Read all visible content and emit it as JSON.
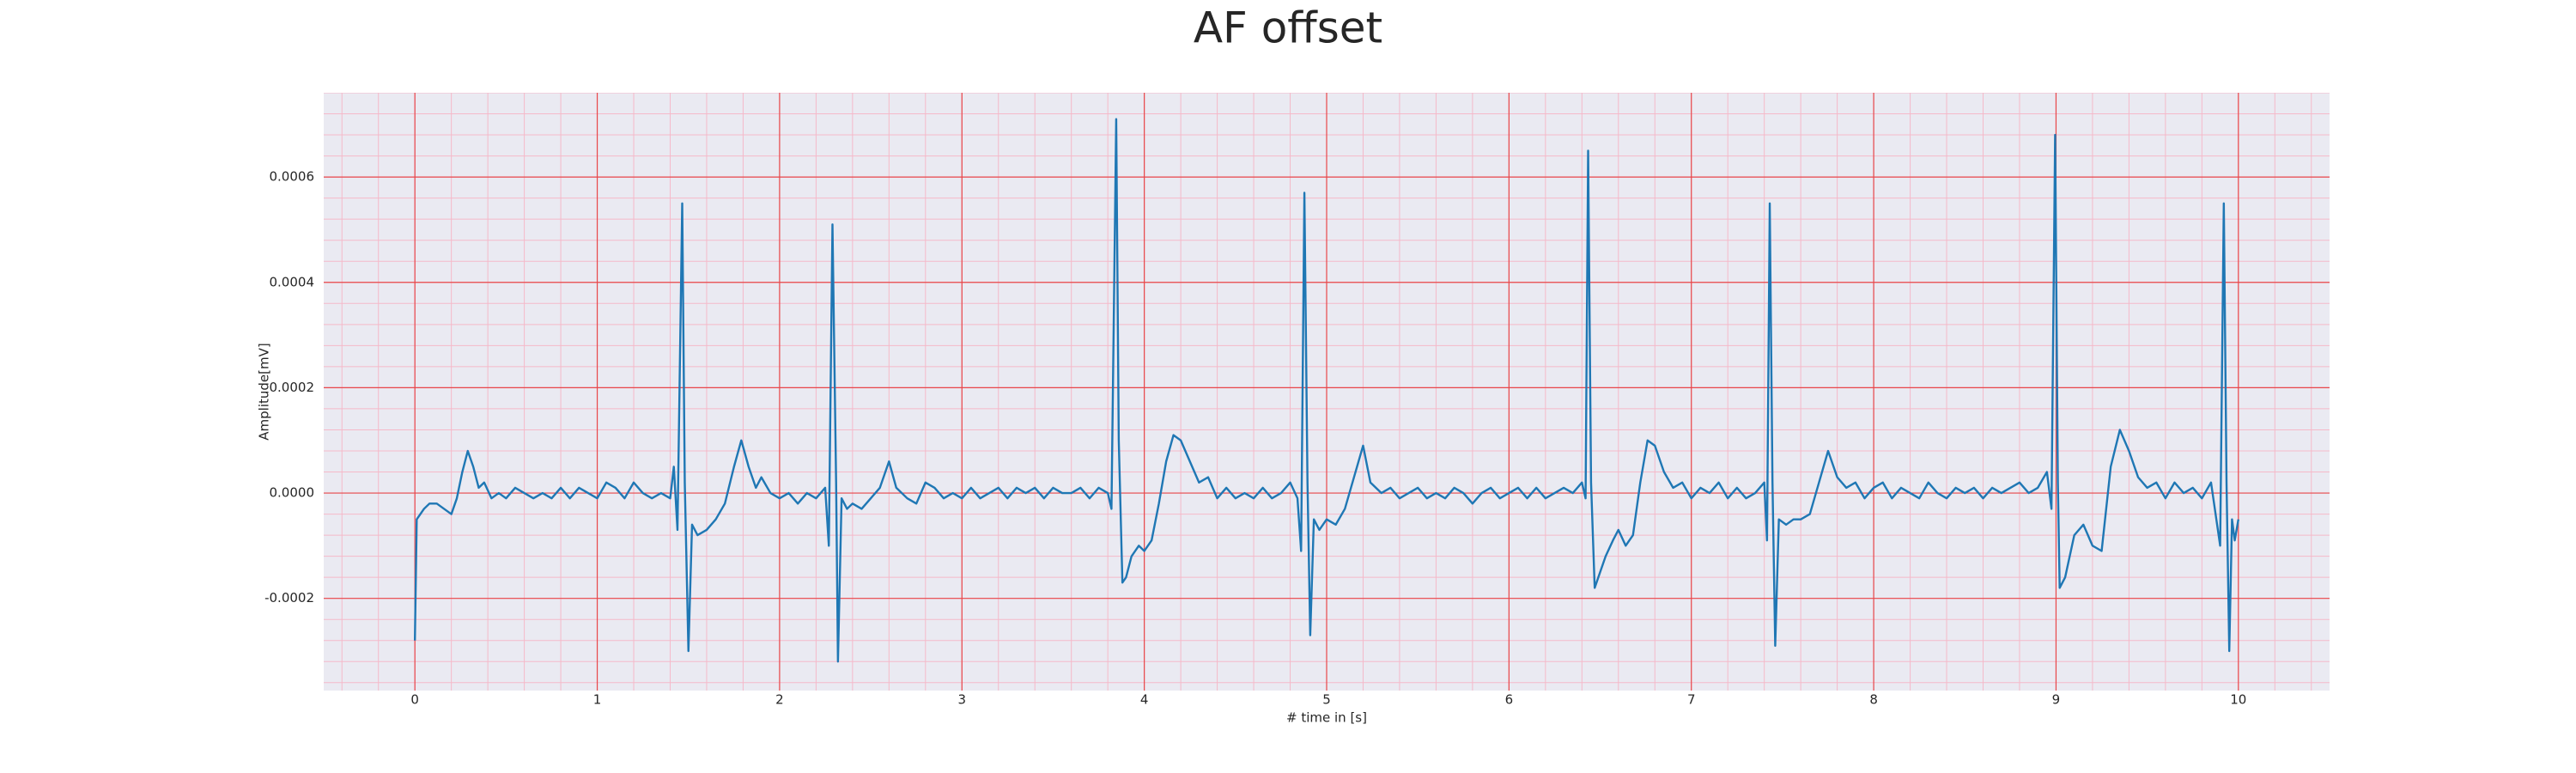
{
  "chart_data": {
    "type": "line",
    "title": "AF offset",
    "xlabel": "# time in [s]",
    "ylabel": "Amplitude[mV]",
    "color": "#1f77b4",
    "background": "#eaeaf2",
    "grid": true,
    "grid_color": "#e8474a",
    "minor_grid": true,
    "minor_grid_color": "#f5b9c9",
    "xlim": [
      -0.5,
      10.5
    ],
    "ylim": [
      -0.000375,
      0.00076
    ],
    "xticks": [
      0,
      1,
      2,
      3,
      4,
      5,
      6,
      7,
      8,
      9,
      10
    ],
    "yticks": [
      {
        "value": -0.0002,
        "label": "-0.0002"
      },
      {
        "value": 0,
        "label": "0.0000"
      },
      {
        "value": 0.0002,
        "label": "0.0002"
      },
      {
        "value": 0.0004,
        "label": "0.0004"
      },
      {
        "value": 0.0006,
        "label": "0.0006"
      }
    ],
    "x": [
      0,
      0.01,
      0.03,
      0.05,
      0.08,
      0.12,
      0.16,
      0.2,
      0.23,
      0.26,
      0.29,
      0.32,
      0.35,
      0.38,
      0.42,
      0.46,
      0.5,
      0.55,
      0.6,
      0.65,
      0.7,
      0.75,
      0.8,
      0.85,
      0.9,
      0.95,
      1.0,
      1.05,
      1.1,
      1.15,
      1.2,
      1.25,
      1.3,
      1.35,
      1.4,
      1.42,
      1.44,
      1.466,
      1.48,
      1.5,
      1.52,
      1.55,
      1.6,
      1.65,
      1.7,
      1.75,
      1.79,
      1.83,
      1.87,
      1.9,
      1.95,
      2.0,
      2.05,
      2.1,
      2.15,
      2.2,
      2.25,
      2.27,
      2.29,
      2.31,
      2.32,
      2.34,
      2.37,
      2.4,
      2.45,
      2.5,
      2.55,
      2.6,
      2.64,
      2.7,
      2.75,
      2.8,
      2.85,
      2.9,
      2.95,
      3.0,
      3.05,
      3.1,
      3.15,
      3.2,
      3.25,
      3.3,
      3.35,
      3.4,
      3.45,
      3.5,
      3.55,
      3.6,
      3.65,
      3.7,
      3.75,
      3.8,
      3.82,
      3.846,
      3.86,
      3.88,
      3.9,
      3.93,
      3.97,
      4.0,
      4.04,
      4.08,
      4.12,
      4.16,
      4.2,
      4.25,
      4.3,
      4.35,
      4.4,
      4.45,
      4.5,
      4.55,
      4.6,
      4.65,
      4.7,
      4.75,
      4.8,
      4.84,
      4.86,
      4.878,
      4.895,
      4.91,
      4.93,
      4.96,
      5.0,
      5.05,
      5.1,
      5.15,
      5.2,
      5.24,
      5.3,
      5.35,
      5.4,
      5.45,
      5.5,
      5.55,
      5.6,
      5.65,
      5.7,
      5.75,
      5.8,
      5.85,
      5.9,
      5.95,
      6.0,
      6.05,
      6.1,
      6.15,
      6.2,
      6.25,
      6.3,
      6.35,
      6.4,
      6.42,
      6.434,
      6.45,
      6.47,
      6.5,
      6.53,
      6.57,
      6.6,
      6.64,
      6.68,
      6.72,
      6.76,
      6.8,
      6.85,
      6.9,
      6.95,
      7.0,
      7.05,
      7.1,
      7.15,
      7.2,
      7.25,
      7.3,
      7.35,
      7.4,
      7.415,
      7.43,
      7.445,
      7.46,
      7.48,
      7.52,
      7.56,
      7.6,
      7.65,
      7.7,
      7.75,
      7.8,
      7.85,
      7.9,
      7.95,
      8.0,
      8.05,
      8.1,
      8.15,
      8.2,
      8.25,
      8.3,
      8.35,
      8.4,
      8.45,
      8.5,
      8.55,
      8.6,
      8.65,
      8.7,
      8.75,
      8.8,
      8.85,
      8.9,
      8.95,
      8.975,
      8.995,
      9.01,
      9.02,
      9.05,
      9.1,
      9.15,
      9.2,
      9.25,
      9.3,
      9.35,
      9.4,
      9.45,
      9.5,
      9.55,
      9.6,
      9.65,
      9.7,
      9.75,
      9.8,
      9.85,
      9.9,
      9.92,
      9.935,
      9.95,
      9.965,
      9.98,
      10.0
    ],
    "values": [
      -0.00028,
      -5e-05,
      -4e-05,
      -3e-05,
      -2e-05,
      -2e-05,
      -3e-05,
      -4e-05,
      -1e-05,
      4e-05,
      8e-05,
      5e-05,
      1e-05,
      2e-05,
      -1e-05,
      0,
      -1e-05,
      1e-05,
      0,
      -1e-05,
      0,
      -1e-05,
      1e-05,
      -1e-05,
      1e-05,
      0,
      -1e-05,
      2e-05,
      1e-05,
      -1e-05,
      2e-05,
      0,
      -1e-05,
      0,
      -1e-05,
      5e-05,
      -7e-05,
      0.00055,
      2e-05,
      -0.0003,
      -6e-05,
      -8e-05,
      -7e-05,
      -5e-05,
      -2e-05,
      5e-05,
      0.0001,
      5e-05,
      1e-05,
      3e-05,
      0,
      -1e-05,
      0,
      -2e-05,
      0,
      -1e-05,
      1e-05,
      -0.0001,
      0.00051,
      2e-05,
      -0.00032,
      -1e-05,
      -3e-05,
      -2e-05,
      -3e-05,
      -1e-05,
      1e-05,
      6e-05,
      1e-05,
      -1e-05,
      -2e-05,
      2e-05,
      1e-05,
      -1e-05,
      0,
      -1e-05,
      1e-05,
      -1e-05,
      0,
      1e-05,
      -1e-05,
      1e-05,
      0,
      1e-05,
      -1e-05,
      1e-05,
      0,
      0,
      1e-05,
      -1e-05,
      1e-05,
      0,
      -3e-05,
      0.00071,
      0.0001,
      -0.00017,
      -0.00016,
      -0.00012,
      -0.0001,
      -0.00011,
      -9e-05,
      -2e-05,
      6e-05,
      0.00011,
      0.0001,
      6e-05,
      2e-05,
      3e-05,
      -1e-05,
      1e-05,
      -1e-05,
      0,
      -1e-05,
      1e-05,
      -1e-05,
      0,
      2e-05,
      -1e-05,
      -0.00011,
      0.00057,
      2e-05,
      -0.00027,
      -5e-05,
      -7e-05,
      -5e-05,
      -6e-05,
      -3e-05,
      3e-05,
      9e-05,
      2e-05,
      0,
      1e-05,
      -1e-05,
      0,
      1e-05,
      -1e-05,
      0,
      -1e-05,
      1e-05,
      0,
      -2e-05,
      0,
      1e-05,
      -1e-05,
      0,
      1e-05,
      -1e-05,
      1e-05,
      -1e-05,
      0,
      1e-05,
      0,
      2e-05,
      -1e-05,
      0.00065,
      2e-05,
      -0.00018,
      -0.00015,
      -0.00012,
      -9e-05,
      -7e-05,
      -0.0001,
      -8e-05,
      2e-05,
      0.0001,
      9e-05,
      4e-05,
      1e-05,
      2e-05,
      -1e-05,
      1e-05,
      0,
      2e-05,
      -1e-05,
      1e-05,
      -1e-05,
      0,
      2e-05,
      -9e-05,
      0.00055,
      2e-05,
      -0.00029,
      -5e-05,
      -6e-05,
      -5e-05,
      -5e-05,
      -4e-05,
      2e-05,
      8e-05,
      3e-05,
      1e-05,
      2e-05,
      -1e-05,
      1e-05,
      2e-05,
      -1e-05,
      1e-05,
      0,
      -1e-05,
      2e-05,
      0,
      -1e-05,
      1e-05,
      0,
      1e-05,
      -1e-05,
      1e-05,
      0,
      1e-05,
      2e-05,
      0,
      1e-05,
      4e-05,
      -3e-05,
      0.00068,
      2e-05,
      -0.00018,
      -0.00016,
      -8e-05,
      -6e-05,
      -0.0001,
      -0.00011,
      5e-05,
      0.00012,
      8e-05,
      3e-05,
      1e-05,
      2e-05,
      -1e-05,
      2e-05,
      0,
      1e-05,
      -1e-05,
      2e-05,
      -0.0001,
      0.00055,
      2e-05,
      -0.0003,
      -5e-05,
      -9e-05,
      -5e-05
    ]
  }
}
